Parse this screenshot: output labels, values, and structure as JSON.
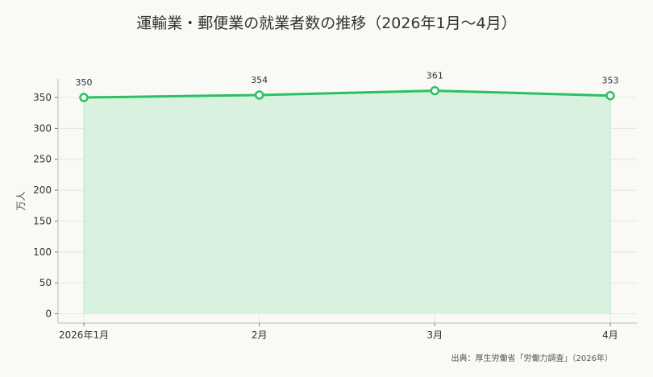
{
  "chart_data": {
    "type": "area",
    "title": "運輸業・郵便業の就業者数の推移（2026年1月〜4月）",
    "ylabel": "万人",
    "xlabel": "",
    "categories": [
      "2026年1月",
      "2月",
      "3月",
      "4月"
    ],
    "series": [
      {
        "values": [
          350,
          354,
          361,
          353
        ]
      }
    ],
    "data_labels": [
      "350",
      "354",
      "361",
      "353"
    ],
    "y_ticks": [
      0,
      50,
      100,
      150,
      200,
      250,
      300,
      350
    ],
    "y_tick_labels": [
      "0",
      "50",
      "100",
      "150",
      "200",
      "250",
      "300",
      "350"
    ],
    "ylim": [
      -15,
      380
    ],
    "grid": true,
    "legend": "none",
    "source": "出典：厚生労働省「労働力調査」（2026年）",
    "colors": {
      "line": "#2cc063",
      "fill": "#d9f2df",
      "marker_fill": "#ffffff",
      "grid": "#e6e6e2"
    }
  }
}
